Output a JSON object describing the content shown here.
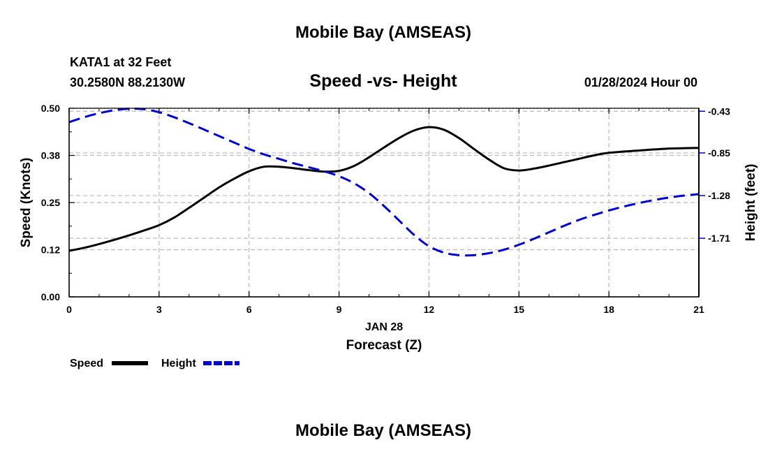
{
  "header": {
    "title": "Mobile Bay (AMSEAS)",
    "station": "KATA1 at 32 Feet",
    "coordinates": "30.2580N  88.2130W",
    "datetime": "01/28/2024 Hour 00"
  },
  "footer": {
    "title": "Mobile Bay (AMSEAS)"
  },
  "chart_data": {
    "type": "line",
    "title": "Speed -vs- Height",
    "xlabel": "Forecast (Z)",
    "date_label": "JAN 28",
    "xlim": [
      0,
      21
    ],
    "x_ticks": [
      0,
      3,
      6,
      9,
      12,
      15,
      18,
      21
    ],
    "x_tick_labels": [
      "0",
      "3",
      "6",
      "9",
      "12",
      "15",
      "18",
      "21"
    ],
    "left_axis": {
      "label": "Speed (Knots)",
      "ylim": [
        0,
        0.5
      ],
      "ticks": [
        0.0,
        0.125,
        0.25,
        0.375,
        0.5
      ],
      "tick_labels": [
        "0.00",
        "0.12",
        "0.25",
        "0.38",
        "0.50"
      ]
    },
    "right_axis": {
      "label": "Height (feet)",
      "ylim": [
        -2.3,
        -0.4
      ],
      "ticks": [
        -0.43,
        -0.85,
        -1.28,
        -1.71
      ],
      "tick_labels": [
        "-0.43",
        "-0.85",
        "-1.28",
        "-1.71"
      ]
    },
    "grid": true,
    "legend_position": "bottom-left",
    "series": [
      {
        "name": "Speed",
        "axis": "left",
        "color": "#000000",
        "style": "solid",
        "x": [
          0,
          0.5,
          1,
          1.5,
          2,
          2.5,
          3,
          3.5,
          4,
          4.5,
          5,
          5.5,
          6,
          6.5,
          7,
          7.5,
          8,
          8.5,
          9,
          9.5,
          10,
          10.5,
          11,
          11.5,
          12,
          12.5,
          13,
          13.5,
          14,
          14.5,
          15,
          15.5,
          16,
          16.5,
          17,
          17.5,
          18,
          19,
          20,
          21
        ],
        "values": [
          0.122,
          0.13,
          0.14,
          0.151,
          0.163,
          0.176,
          0.19,
          0.21,
          0.236,
          0.263,
          0.29,
          0.313,
          0.333,
          0.345,
          0.345,
          0.341,
          0.336,
          0.332,
          0.334,
          0.347,
          0.37,
          0.396,
          0.421,
          0.441,
          0.45,
          0.443,
          0.421,
          0.392,
          0.364,
          0.341,
          0.335,
          0.34,
          0.348,
          0.357,
          0.366,
          0.375,
          0.382,
          0.388,
          0.393,
          0.395
        ]
      },
      {
        "name": "Height",
        "axis": "right",
        "color": "#0000cc",
        "style": "dashed",
        "x": [
          0,
          0.5,
          1,
          1.5,
          2,
          2.5,
          3,
          3.5,
          4,
          4.5,
          5,
          5.5,
          6,
          6.5,
          7,
          7.5,
          8,
          8.5,
          9,
          9.5,
          10,
          10.5,
          11,
          11.5,
          12,
          12.5,
          13,
          13.5,
          14,
          14.5,
          15,
          15.5,
          16,
          16.5,
          17,
          17.5,
          18,
          18.5,
          19,
          19.5,
          20,
          20.5,
          21
        ],
        "values": [
          -0.54,
          -0.49,
          -0.45,
          -0.42,
          -0.405,
          -0.41,
          -0.44,
          -0.49,
          -0.55,
          -0.615,
          -0.68,
          -0.745,
          -0.81,
          -0.865,
          -0.91,
          -0.955,
          -0.995,
          -1.035,
          -1.085,
          -1.155,
          -1.255,
          -1.385,
          -1.53,
          -1.675,
          -1.79,
          -1.855,
          -1.88,
          -1.88,
          -1.86,
          -1.825,
          -1.775,
          -1.715,
          -1.65,
          -1.585,
          -1.525,
          -1.475,
          -1.43,
          -1.39,
          -1.355,
          -1.325,
          -1.3,
          -1.28,
          -1.265
        ]
      }
    ],
    "legend": [
      {
        "label": "Speed",
        "color": "#000000",
        "style": "solid"
      },
      {
        "label": "Height",
        "color": "#0000cc",
        "style": "dashed"
      }
    ]
  }
}
